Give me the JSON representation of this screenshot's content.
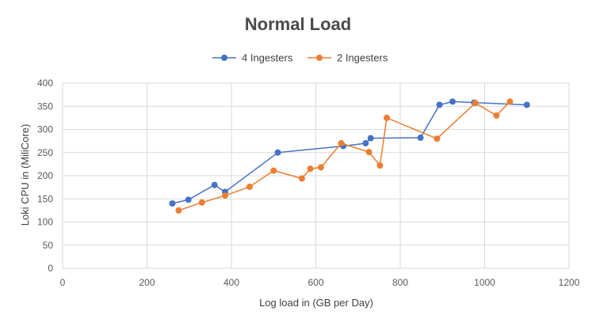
{
  "chart_data": {
    "type": "scatter",
    "title": "Normal Load",
    "xlabel": "Log load in (GB per Day)",
    "ylabel": "Loki CPU in (MiliCore)",
    "xlim": [
      0,
      1200
    ],
    "ylim": [
      0,
      400
    ],
    "xticks": [
      0,
      200,
      400,
      600,
      800,
      1000,
      1200
    ],
    "yticks": [
      0,
      50,
      100,
      150,
      200,
      250,
      300,
      350,
      400
    ],
    "grid": true,
    "legend_position": "top",
    "series": [
      {
        "name": "4 Ingesters",
        "color": "#4472c4",
        "points": [
          [
            260,
            140
          ],
          [
            298,
            148
          ],
          [
            360,
            180
          ],
          [
            385,
            165
          ],
          [
            510,
            250
          ],
          [
            665,
            264
          ],
          [
            718,
            270
          ],
          [
            730,
            281
          ],
          [
            848,
            282
          ],
          [
            893,
            353
          ],
          [
            924,
            360
          ],
          [
            975,
            358
          ],
          [
            1100,
            353
          ]
        ]
      },
      {
        "name": "2 Ingesters",
        "color": "#ed7d31",
        "points": [
          [
            275,
            125
          ],
          [
            330,
            142
          ],
          [
            385,
            157
          ],
          [
            443,
            176
          ],
          [
            500,
            211
          ],
          [
            567,
            194
          ],
          [
            587,
            215
          ],
          [
            612,
            218
          ],
          [
            660,
            270
          ],
          [
            726,
            251
          ],
          [
            752,
            222
          ],
          [
            768,
            325
          ],
          [
            887,
            280
          ],
          [
            978,
            357
          ],
          [
            1028,
            330
          ],
          [
            1060,
            360
          ]
        ]
      }
    ]
  }
}
